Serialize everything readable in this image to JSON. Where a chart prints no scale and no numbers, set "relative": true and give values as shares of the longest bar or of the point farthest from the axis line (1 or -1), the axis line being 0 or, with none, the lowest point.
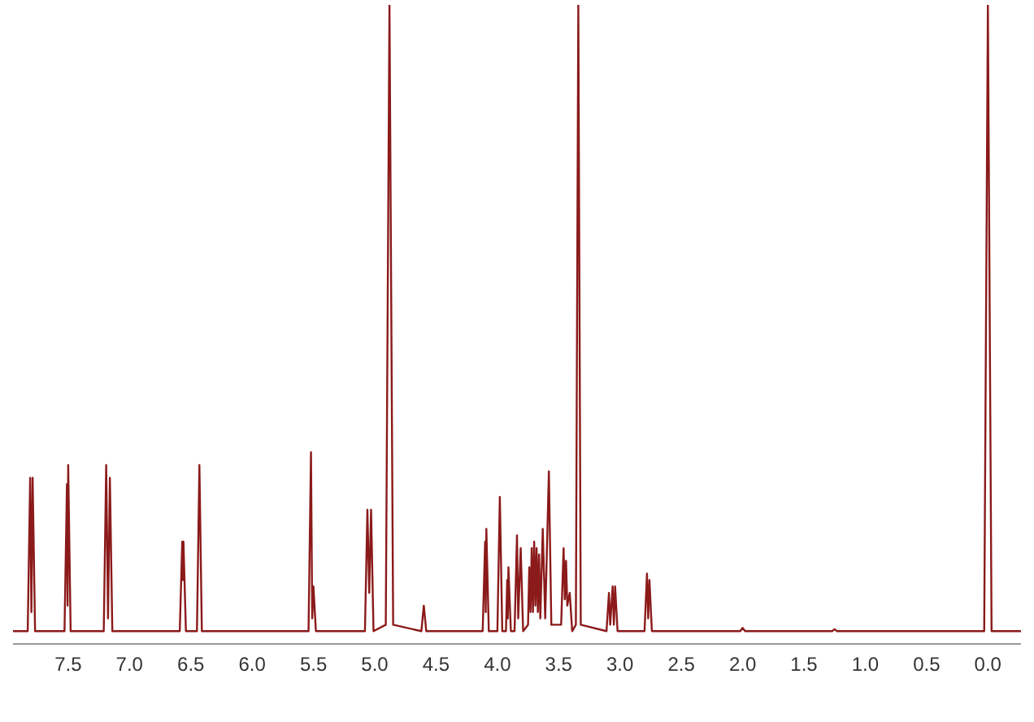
{
  "chart_data": {
    "type": "line",
    "relative": true,
    "xlim": [
      7.95,
      -0.27
    ],
    "xticks": [
      7.5,
      {
        "value": 7,
        "label": "7.0"
      },
      6.5,
      {
        "value": 6,
        "label": "6.0"
      },
      5.5,
      {
        "value": 5,
        "label": "5.0"
      },
      4.5,
      {
        "value": 4,
        "label": "4.0"
      },
      3.5,
      {
        "value": 3,
        "label": "3.0"
      },
      2.5,
      {
        "value": 2,
        "label": "2.0"
      },
      1.5,
      {
        "value": 1,
        "label": "1.0"
      },
      0.5,
      {
        "value": 0,
        "label": "0.0"
      }
    ],
    "grid": false,
    "legend": false,
    "marker": "none",
    "line_style": "solid",
    "series": [
      {
        "color": "#8b1a1a",
        "x": [
          7.95,
          7.83,
          7.81,
          7.8,
          7.79,
          7.77,
          7.53,
          7.51,
          7.505,
          7.5,
          7.48,
          7.21,
          7.19,
          7.175,
          7.16,
          7.14,
          6.59,
          6.57,
          6.565,
          6.56,
          6.54,
          6.45,
          6.43,
          6.41,
          5.54,
          5.52,
          5.51,
          5.5,
          5.48,
          5.08,
          5.06,
          5.045,
          5.03,
          5.01,
          4.91,
          4.88,
          4.85,
          4.62,
          4.6,
          4.58,
          4.12,
          4.1,
          4.095,
          4.09,
          4.07,
          4,
          3.98,
          3.96,
          3.93,
          3.92,
          3.915,
          3.91,
          3.89,
          3.86,
          3.84,
          3.83,
          3.81,
          3.79,
          3.75,
          3.74,
          3.73,
          3.72,
          3.71,
          3.7,
          3.69,
          3.68,
          3.67,
          3.66,
          3.65,
          3.63,
          3.61,
          3.58,
          3.56,
          3.48,
          3.46,
          3.45,
          3.44,
          3.43,
          3.41,
          3.39,
          3.36,
          3.34,
          3.32,
          3.11,
          3.09,
          3.08,
          3.06,
          3.05,
          3.04,
          3.02,
          2.8,
          2.78,
          2.77,
          2.76,
          2.74,
          2.02,
          2,
          1.98,
          1.27,
          1.25,
          1.23,
          0.03,
          0,
          -0.03,
          -0.27
        ],
        "values": [
          0.02,
          0.02,
          0.26,
          0.05,
          0.26,
          0.02,
          0.02,
          0.25,
          0.06,
          0.28,
          0.02,
          0.02,
          0.28,
          0.04,
          0.26,
          0.02,
          0.02,
          0.16,
          0.1,
          0.16,
          0.02,
          0.02,
          0.28,
          0.02,
          0.02,
          0.3,
          0.04,
          0.09,
          0.02,
          0.02,
          0.21,
          0.08,
          0.21,
          0.02,
          0.03,
          1,
          0.03,
          0.02,
          0.06,
          0.02,
          0.02,
          0.16,
          0.05,
          0.18,
          0.02,
          0.02,
          0.23,
          0.02,
          0.02,
          0.1,
          0.04,
          0.12,
          0.02,
          0.02,
          0.17,
          0.04,
          0.15,
          0.02,
          0.03,
          0.12,
          0.05,
          0.15,
          0.05,
          0.16,
          0.06,
          0.15,
          0.05,
          0.14,
          0.04,
          0.18,
          0.04,
          0.27,
          0.03,
          0.03,
          0.15,
          0.07,
          0.13,
          0.06,
          0.08,
          0.02,
          0.03,
          1,
          0.03,
          0.02,
          0.08,
          0.03,
          0.09,
          0.03,
          0.09,
          0.02,
          0.02,
          0.11,
          0.04,
          0.1,
          0.02,
          0.02,
          0.025,
          0.02,
          0.02,
          0.023,
          0.02,
          0.02,
          1,
          0.02,
          0.02
        ]
      }
    ]
  }
}
